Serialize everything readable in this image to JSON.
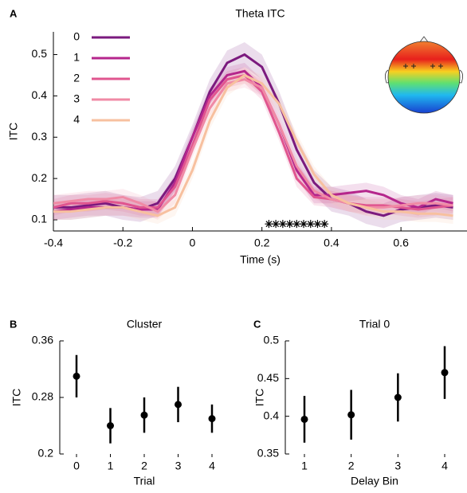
{
  "chart_data": [
    {
      "type": "line",
      "panel_label": "A",
      "title": "Theta ITC",
      "xlabel": "Time (s)",
      "ylabel": "ITC",
      "x": [
        -0.4,
        -0.35,
        -0.3,
        -0.25,
        -0.2,
        -0.15,
        -0.1,
        -0.05,
        0,
        0.05,
        0.1,
        0.15,
        0.2,
        0.25,
        0.3,
        0.35,
        0.4,
        0.45,
        0.5,
        0.55,
        0.6,
        0.65,
        0.7,
        0.75
      ],
      "series": [
        {
          "name": "0",
          "color": "#7b1a7e",
          "error": 0.03,
          "values": [
            0.13,
            0.13,
            0.135,
            0.14,
            0.13,
            0.125,
            0.14,
            0.2,
            0.3,
            0.41,
            0.48,
            0.5,
            0.47,
            0.38,
            0.27,
            0.19,
            0.15,
            0.14,
            0.12,
            0.11,
            0.125,
            0.13,
            0.135,
            0.13
          ]
        },
        {
          "name": "1",
          "color": "#b5268c",
          "error": 0.02,
          "values": [
            0.12,
            0.125,
            0.13,
            0.13,
            0.13,
            0.125,
            0.125,
            0.19,
            0.3,
            0.4,
            0.45,
            0.46,
            0.42,
            0.33,
            0.22,
            0.16,
            0.16,
            0.165,
            0.17,
            0.16,
            0.14,
            0.13,
            0.15,
            0.14
          ]
        },
        {
          "name": "2",
          "color": "#e0558f",
          "error": 0.02,
          "values": [
            0.13,
            0.14,
            0.14,
            0.145,
            0.14,
            0.13,
            0.13,
            0.18,
            0.28,
            0.39,
            0.44,
            0.45,
            0.41,
            0.31,
            0.2,
            0.155,
            0.15,
            0.14,
            0.135,
            0.135,
            0.13,
            0.125,
            0.13,
            0.135
          ]
        },
        {
          "name": "3",
          "color": "#f08aa5",
          "error": 0.02,
          "values": [
            0.14,
            0.145,
            0.15,
            0.15,
            0.155,
            0.14,
            0.12,
            0.16,
            0.27,
            0.37,
            0.43,
            0.44,
            0.42,
            0.33,
            0.23,
            0.17,
            0.15,
            0.14,
            0.13,
            0.13,
            0.135,
            0.14,
            0.14,
            0.135
          ]
        },
        {
          "name": "4",
          "color": "#f7c09f",
          "error": 0.02,
          "values": [
            0.12,
            0.12,
            0.125,
            0.13,
            0.13,
            0.12,
            0.11,
            0.13,
            0.22,
            0.34,
            0.42,
            0.45,
            0.43,
            0.38,
            0.29,
            0.21,
            0.16,
            0.14,
            0.13,
            0.12,
            0.12,
            0.115,
            0.115,
            0.11
          ]
        }
      ],
      "significant_x": [
        0.22,
        0.24,
        0.26,
        0.28,
        0.3,
        0.32,
        0.34,
        0.36,
        0.38
      ],
      "significant_y": 0.09,
      "xlim": [
        -0.4,
        0.79
      ],
      "xticks": [
        -0.4,
        -0.2,
        0,
        0.2,
        0.4,
        0.6
      ],
      "ylim": [
        0.073,
        0.555
      ],
      "yticks": [
        0.1,
        0.2,
        0.3,
        0.4,
        0.5
      ]
    },
    {
      "type": "errorbar",
      "panel_label": "B",
      "title": "Cluster",
      "xlabel": "Trial",
      "ylabel": "ITC",
      "categories": [
        "0",
        "1",
        "2",
        "3",
        "4"
      ],
      "values": [
        0.31,
        0.24,
        0.255,
        0.27,
        0.25
      ],
      "errors": [
        0.03,
        0.025,
        0.025,
        0.025,
        0.02
      ],
      "color": "#000000",
      "ylim": [
        0.2,
        0.36
      ],
      "yticks": [
        0.2,
        0.28,
        0.36
      ]
    },
    {
      "type": "errorbar",
      "panel_label": "C",
      "title": "Trial 0",
      "xlabel": "Delay Bin",
      "ylabel": "ITC",
      "categories": [
        "1",
        "2",
        "3",
        "4"
      ],
      "values": [
        0.396,
        0.402,
        0.425,
        0.458
      ],
      "errors": [
        0.031,
        0.033,
        0.032,
        0.035
      ],
      "color": "#000000",
      "ylim": [
        0.35,
        0.5
      ],
      "yticks": [
        0.35,
        0.4,
        0.45,
        0.5
      ]
    }
  ]
}
